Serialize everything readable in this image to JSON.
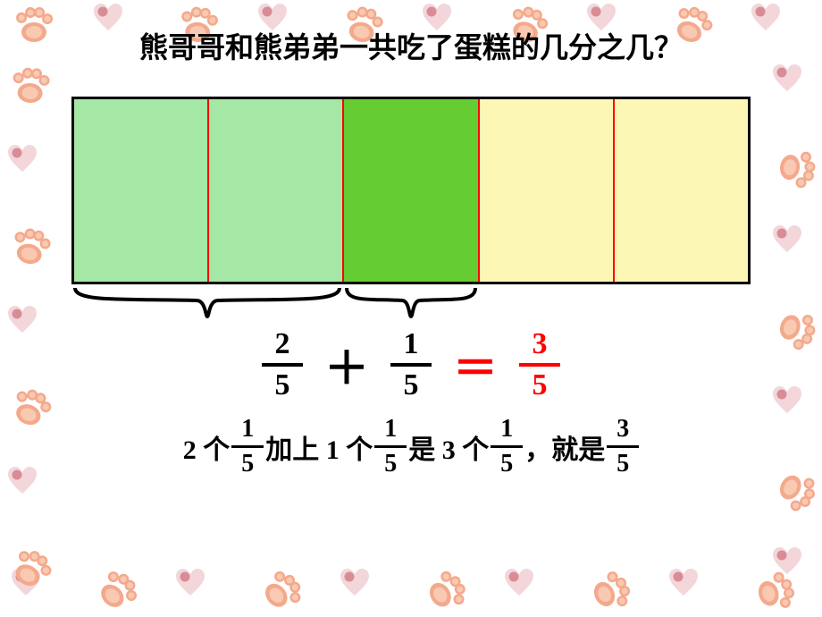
{
  "question": "熊哥哥和熊弟弟一共吃了蛋糕的几分之几？",
  "bar": {
    "parts": 5,
    "fills": [
      "#a5e8a5",
      "#a5e8a5",
      "#66cc33",
      "#fdf7b6",
      "#fdf7b6"
    ],
    "border_color": "#000000",
    "divider_color": "#ff0000"
  },
  "equation": {
    "a": {
      "num": "2",
      "den": "5",
      "color": "#000000"
    },
    "plus": "＋",
    "b": {
      "num": "1",
      "den": "5",
      "color": "#000000"
    },
    "eq": "＝",
    "eq_color": "#ff0000",
    "c": {
      "num": "3",
      "den": "5",
      "color": "#ff0000"
    }
  },
  "sentence": {
    "p1": "2 个",
    "f1": {
      "num": "1",
      "den": "5"
    },
    "p2": " 加上 1 个",
    "f2": {
      "num": "1",
      "den": "5"
    },
    "p3": " 是 3 个",
    "f3": {
      "num": "1",
      "den": "5"
    },
    "p4": "，就是",
    "f4": {
      "num": "3",
      "den": "5"
    }
  },
  "decor": {
    "paw_colors": [
      "#f4a98c",
      "#f9c9b2"
    ],
    "heart_colors": [
      "#d98c96",
      "#f2d6da"
    ]
  }
}
